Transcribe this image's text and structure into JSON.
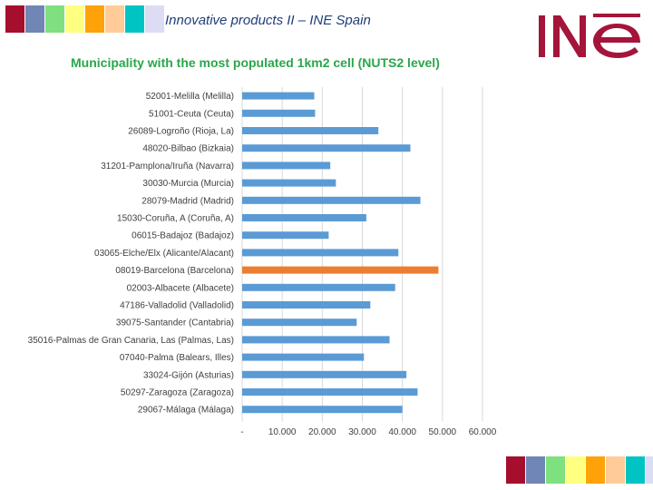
{
  "header": {
    "title": "Innovative products II – INE Spain",
    "logo_text": "INE"
  },
  "colors": {
    "title": "#1f3d7a",
    "chart_title": "#2aa64a",
    "bar": "#5b9bd5",
    "highlight": "#ed7d31",
    "logo": "#a5143a",
    "swatches": [
      "#a50f2d",
      "#6f86b6",
      "#7ee07e",
      "#ffff80",
      "#ffa20a",
      "#ffcc99",
      "#00c4c4",
      "#dcdcf5"
    ]
  },
  "chart_data": {
    "type": "bar",
    "orientation": "horizontal",
    "title": "Municipality with the most populated 1km2 cell (NUTS2 level)",
    "categories": [
      "52001-Melilla (Melilla)",
      "51001-Ceuta (Ceuta)",
      "26089-Logroño (Rioja, La)",
      "48020-Bilbao (Bizkaia)",
      "31201-Pamplona/Iruña (Navarra)",
      "30030-Murcia (Murcia)",
      "28079-Madrid (Madrid)",
      "15030-Coruña, A (Coruña, A)",
      "06015-Badajoz (Badajoz)",
      "03065-Elche/Elx (Alicante/Alacant)",
      "08019-Barcelona (Barcelona)",
      "02003-Albacete (Albacete)",
      "47186-Valladolid (Valladolid)",
      "39075-Santander (Cantabria)",
      "35016-Palmas de Gran Canaria, Las (Palmas, Las)",
      "07040-Palma (Balears, Illes)",
      "33024-Gijón (Asturias)",
      "50297-Zaragoza (Zaragoza)",
      "29067-Málaga (Málaga)"
    ],
    "values": [
      18000,
      18200,
      34000,
      42000,
      22000,
      23400,
      44500,
      31000,
      21600,
      39000,
      49000,
      38200,
      32000,
      28600,
      36800,
      30400,
      41000,
      43800,
      40000
    ],
    "highlight_index": 10,
    "xlim": [
      0,
      60000
    ],
    "xticks": [
      "-",
      "10.000",
      "20.000",
      "30.000",
      "40.000",
      "50.000",
      "60.000"
    ],
    "grid": true
  }
}
